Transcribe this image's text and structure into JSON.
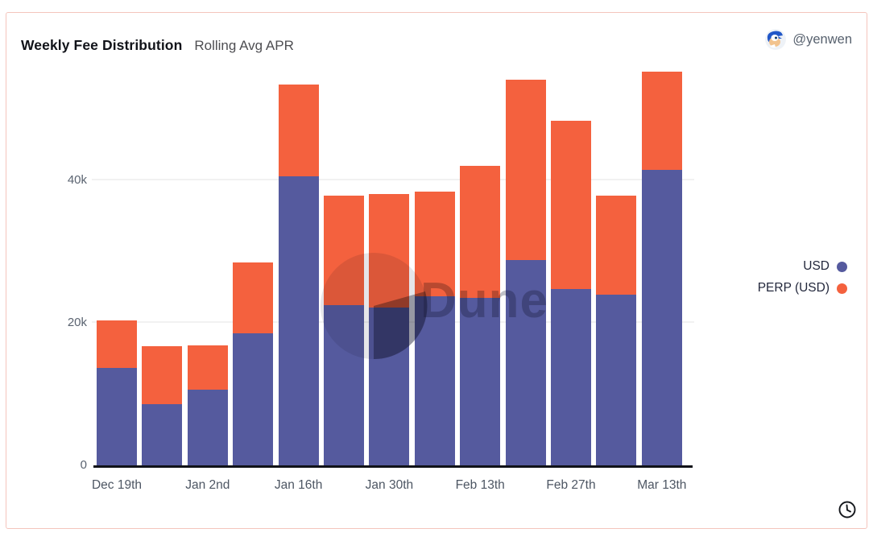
{
  "header": {
    "title": "Weekly Fee Distribution",
    "subtitle": "Rolling Avg APR",
    "author_handle": "@yenwen",
    "avatar_icon": "sonic-avatar"
  },
  "watermark": {
    "text": "Dune",
    "logo_icon": "dune-logo"
  },
  "legend": [
    {
      "label": "USD",
      "color": "#555A9E"
    },
    {
      "label": "PERP (USD)",
      "color": "#F4613E"
    }
  ],
  "colors": {
    "usd_bar": "#555A9E",
    "perp_bar": "#F4613E",
    "card_border": "#F4C5BC",
    "axis": "#101218",
    "gridline": "#f1f1f1"
  },
  "footer": {
    "clock_icon": "clock"
  },
  "chart_data": {
    "type": "bar",
    "stacked": true,
    "title": "Weekly Fee Distribution",
    "subtitle": "Rolling Avg APR",
    "num_bars": 13,
    "x_tick_labels": [
      "Dec 19th",
      "Jan 2nd",
      "Jan 16th",
      "Jan 30th",
      "Feb 13th",
      "Feb 27th",
      "Mar 13th"
    ],
    "x_tick_every_other_bar": true,
    "series": [
      {
        "name": "USD",
        "color": "#555A9E",
        "values": [
          13700,
          8600,
          10600,
          18500,
          40600,
          22500,
          22200,
          23700,
          23500,
          28800,
          24700,
          24000,
          41500
        ]
      },
      {
        "name": "PERP (USD)",
        "color": "#F4613E",
        "values": [
          6600,
          8100,
          6200,
          10000,
          12900,
          15400,
          15900,
          14700,
          18500,
          25300,
          23700,
          13800,
          13700
        ]
      }
    ],
    "stack_totals": [
      20300,
      16700,
      16800,
      28500,
      53500,
      37900,
      38100,
      38400,
      42000,
      54100,
      48400,
      37800,
      55200
    ],
    "y_ticks": [
      "0",
      "20k",
      "40k"
    ],
    "ylim": [
      0,
      56500
    ],
    "grid": "horizontal",
    "legend_position": "right"
  }
}
